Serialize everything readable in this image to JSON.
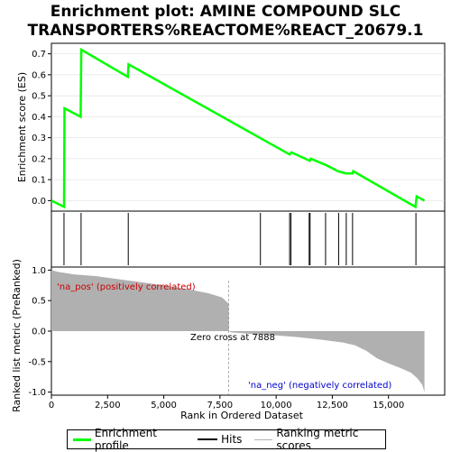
{
  "chart_data": {
    "type": "line",
    "title_line1": "Enrichment plot: AMINE COMPOUND SLC",
    "title_line2": "TRANSPORTERS%REACTOME%REACT_20679.1",
    "top_panel": {
      "ylabel": "Enrichment score (ES)",
      "ylim": [
        -0.05,
        0.75
      ],
      "yticks": [
        "0.0",
        "0.1",
        "0.2",
        "0.3",
        "0.4",
        "0.5",
        "0.6",
        "0.7"
      ],
      "ytick_values": [
        0.0,
        0.1,
        0.2,
        0.3,
        0.4,
        0.5,
        0.6,
        0.7
      ],
      "series_color": "#00ff00",
      "points": [
        [
          0,
          0.0
        ],
        [
          560,
          -0.03
        ],
        [
          580,
          0.44
        ],
        [
          1300,
          0.4
        ],
        [
          1330,
          0.72
        ],
        [
          3400,
          0.59
        ],
        [
          3430,
          0.65
        ],
        [
          10600,
          0.22
        ],
        [
          10680,
          0.23
        ],
        [
          11500,
          0.19
        ],
        [
          11540,
          0.2
        ],
        [
          12200,
          0.17
        ],
        [
          12750,
          0.14
        ],
        [
          13100,
          0.13
        ],
        [
          13400,
          0.13
        ],
        [
          13430,
          0.14
        ],
        [
          16200,
          -0.03
        ],
        [
          16250,
          0.02
        ],
        [
          16600,
          0.0
        ]
      ]
    },
    "hits_panel": {
      "hit_positions": [
        560,
        1320,
        3420,
        9300,
        10600,
        10660,
        11470,
        11510,
        12200,
        12780,
        13120,
        13400,
        16220
      ]
    },
    "bottom_panel": {
      "ylabel": "Ranked list metric (PreRanked)",
      "xlabel": "Rank in Ordered Dataset",
      "xlim": [
        0,
        17500
      ],
      "xticks": [
        "0",
        "2,500",
        "5,000",
        "7,500",
        "10,000",
        "12,500",
        "15,000"
      ],
      "xtick_values": [
        0,
        2500,
        5000,
        7500,
        10000,
        12500,
        15000
      ],
      "ylim": [
        -1.05,
        1.05
      ],
      "yticks": [
        "1.0",
        "0.5",
        "0.0",
        "-0.5",
        "-1.0"
      ],
      "ytick_values": [
        1.0,
        0.5,
        0.0,
        -0.5,
        -1.0
      ],
      "metric_profile": [
        [
          0,
          1.0
        ],
        [
          300,
          0.97
        ],
        [
          1000,
          0.93
        ],
        [
          2000,
          0.9
        ],
        [
          3000,
          0.85
        ],
        [
          4000,
          0.8
        ],
        [
          5000,
          0.75
        ],
        [
          6000,
          0.69
        ],
        [
          7000,
          0.62
        ],
        [
          7600,
          0.55
        ],
        [
          7888,
          0.45
        ],
        [
          7900,
          0.0
        ],
        [
          8000,
          -0.02
        ],
        [
          9000,
          -0.05
        ],
        [
          10000,
          -0.07
        ],
        [
          11000,
          -0.1
        ],
        [
          12000,
          -0.14
        ],
        [
          13000,
          -0.19
        ],
        [
          13500,
          -0.23
        ],
        [
          14000,
          -0.32
        ],
        [
          14500,
          -0.45
        ],
        [
          15000,
          -0.53
        ],
        [
          15500,
          -0.6
        ],
        [
          16000,
          -0.68
        ],
        [
          16300,
          -0.78
        ],
        [
          16500,
          -0.88
        ],
        [
          16600,
          -1.0
        ]
      ],
      "zero_cross_label": "Zero cross at 7888",
      "zero_cross_rank": 7888,
      "pos_label": "'na_pos' (positively correlated)",
      "neg_label": "'na_neg' (negatively correlated)",
      "pos_color": "#cc0000",
      "neg_color": "#0000cc"
    },
    "legend": {
      "items": [
        "Enrichment profile",
        "Hits",
        "Ranking metric scores"
      ]
    }
  }
}
